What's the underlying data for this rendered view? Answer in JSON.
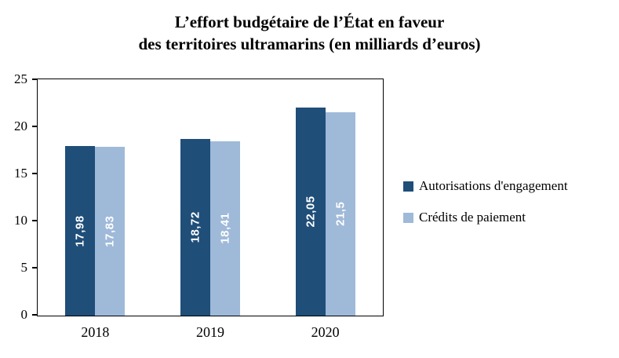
{
  "title": {
    "line1": "L’effort budgétaire de l’État en faveur",
    "line2": "des territoires ultramarins (en milliards d’euros)"
  },
  "chart_data": {
    "type": "bar",
    "title": "L’effort budgétaire de l’État en faveur des territoires ultramarins (en milliards d’euros)",
    "categories": [
      "2018",
      "2019",
      "2020"
    ],
    "series": [
      {
        "name": "Autorisations d'engagement",
        "color": "#1F4E79",
        "values": [
          17.98,
          18.72,
          22.05
        ],
        "labels": [
          "17,98",
          "18,72",
          "22,05"
        ]
      },
      {
        "name": "Crédits de paiement",
        "color": "#9FB9D9",
        "values": [
          17.83,
          18.41,
          21.5
        ],
        "labels": [
          "17,83",
          "18,41",
          "21,5"
        ]
      }
    ],
    "xlabel": "",
    "ylabel": "",
    "ylim": [
      0,
      25
    ],
    "yticks": [
      0,
      5,
      10,
      15,
      20,
      25
    ],
    "grid": false,
    "legend_position": "right",
    "bar_value_labels": "inside-vertical-white"
  }
}
